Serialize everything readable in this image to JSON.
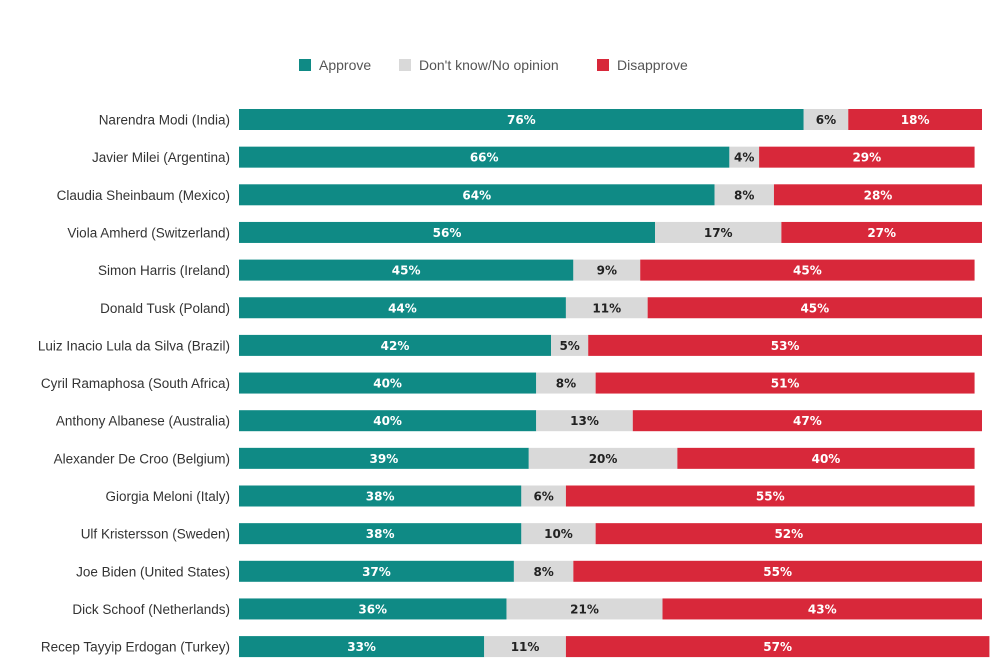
{
  "chart_data": {
    "type": "bar",
    "orientation": "horizontal",
    "stacked": true,
    "normalized_percent": true,
    "grid": false,
    "legend_position": "top-center",
    "title": "",
    "xlabel": "",
    "ylabel": "",
    "xlim": [
      0,
      100
    ],
    "value_suffix": "%",
    "categories": [
      "Narendra Modi (India)",
      "Javier Milei (Argentina)",
      "Claudia Sheinbaum (Mexico)",
      "Viola Amherd (Switzerland)",
      "Simon Harris (Ireland)",
      "Donald Tusk (Poland)",
      "Luiz Inacio Lula da Silva (Brazil)",
      "Cyril Ramaphosa (South Africa)",
      "Anthony Albanese (Australia)",
      "Alexander De Croo (Belgium)",
      "Giorgia Meloni (Italy)",
      "Ulf Kristersson (Sweden)",
      "Joe Biden (United States)",
      "Dick Schoof (Netherlands)",
      "Recep Tayyip Erdogan (Turkey)"
    ],
    "series": [
      {
        "name": "Approve",
        "color": "#0f8a85",
        "label_color": "#ffffff",
        "values": [
          76,
          66,
          64,
          56,
          45,
          44,
          42,
          40,
          40,
          39,
          38,
          38,
          37,
          36,
          33
        ]
      },
      {
        "name": "Don't know/No opinion",
        "color": "#d9d9d9",
        "label_color": "#222222",
        "values": [
          6,
          4,
          8,
          17,
          9,
          11,
          5,
          8,
          13,
          20,
          6,
          10,
          8,
          21,
          11
        ]
      },
      {
        "name": "Disapprove",
        "color": "#d8283a",
        "label_color": "#ffffff",
        "values": [
          18,
          29,
          28,
          27,
          45,
          45,
          53,
          51,
          47,
          40,
          55,
          52,
          55,
          43,
          57
        ]
      }
    ]
  }
}
